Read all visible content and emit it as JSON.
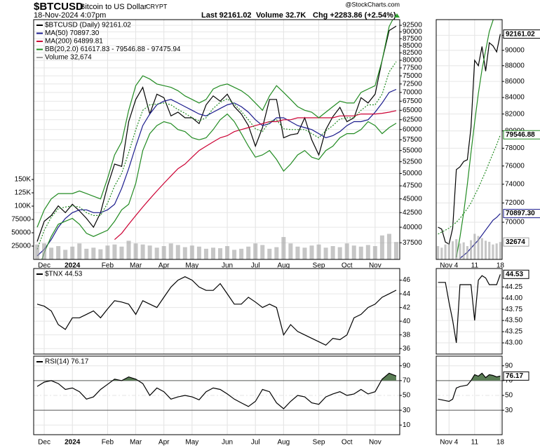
{
  "header": {
    "symbol": "$BTCUSD",
    "name": "Bitcoin to US Dollar",
    "exchange": "CRYPT",
    "datetime": "18-Nov-2024 4:07pm",
    "source": "@StockCharts.com",
    "last": "Last 92161.02",
    "volume": "Volume 32.7K",
    "change": "Chg +2283.86 (+2.54%)"
  },
  "chart_data": [
    {
      "type": "line",
      "log": true,
      "grid": true,
      "categories": [
        null,
        "Dec",
        null,
        null,
        null,
        "2024",
        null,
        null,
        null,
        null,
        "Feb",
        null,
        null,
        null,
        "Mar",
        null,
        null,
        null,
        "Apr",
        null,
        null,
        null,
        "May",
        null,
        null,
        null,
        null,
        "Jun",
        null,
        null,
        null,
        "Jul",
        null,
        null,
        null,
        "Aug",
        null,
        null,
        null,
        null,
        "Sep",
        null,
        null,
        null,
        "Oct",
        null,
        null,
        null,
        "Nov",
        null,
        null,
        null
      ],
      "ylim": [
        35000,
        94700
      ],
      "yticks": [
        37500,
        40000,
        42500,
        45000,
        47500,
        50000,
        52500,
        55000,
        57500,
        60000,
        62500,
        65000,
        67500,
        70000,
        72500,
        75000,
        77500,
        80000,
        82500,
        85000,
        87500,
        90000,
        92500
      ],
      "y2lim": [
        0,
        450000
      ],
      "y2ticks": [
        25000,
        50000,
        75000,
        {
          "value": 100000,
          "label": "100K"
        },
        {
          "value": 125000,
          "label": "125K"
        },
        {
          "value": 150000,
          "label": "150K"
        }
      ],
      "series": [
        {
          "name": "$BTCUSD (Daily) 92161.02",
          "color": "#000000",
          "values": [
            37700,
            41000,
            42000,
            43700,
            42500,
            44000,
            42800,
            41500,
            40000,
            42500,
            47500,
            52000,
            51500,
            62000,
            68000,
            71500,
            64000,
            69500,
            68500,
            63500,
            64500,
            63000,
            63000,
            61500,
            66500,
            69000,
            67500,
            69500,
            66000,
            64000,
            61000,
            56000,
            60500,
            68000,
            68000,
            58000,
            58700,
            59000,
            63000,
            57500,
            54000,
            60000,
            63300,
            65800,
            62000,
            63000,
            68500,
            67000,
            69500,
            80000,
            90500,
            92161.02
          ]
        },
        {
          "name": "MA(50) 70897.30",
          "color": "#1a1a8c",
          "values": [
            35500,
            36500,
            38000,
            40000,
            41500,
            42500,
            43000,
            43000,
            42500,
            42500,
            43000,
            44000,
            47000,
            51000,
            56000,
            61000,
            64000,
            66500,
            67500,
            68000,
            67000,
            66000,
            65000,
            64000,
            63500,
            64500,
            65500,
            66500,
            67000,
            66000,
            64500,
            62500,
            61000,
            61500,
            63000,
            63000,
            62000,
            61000,
            60500,
            60000,
            59000,
            58000,
            58500,
            59500,
            61000,
            62000,
            62000,
            62500,
            64500,
            67000,
            70000,
            70897.3
          ]
        },
        {
          "name": "MA(200) 64899.81",
          "color": "#cc0033",
          "values": [
            null,
            null,
            null,
            null,
            null,
            null,
            null,
            null,
            null,
            null,
            null,
            38000,
            39000,
            40500,
            42000,
            43500,
            45000,
            46500,
            48000,
            49500,
            51000,
            52000,
            53500,
            55000,
            56000,
            57000,
            58000,
            58500,
            59500,
            60000,
            60500,
            61000,
            61500,
            62000,
            62000,
            62500,
            62500,
            63000,
            63000,
            63000,
            63000,
            63000,
            63000,
            63500,
            63500,
            63500,
            64000,
            64000,
            64000,
            64200,
            64500,
            64899.81
          ]
        },
        {
          "name": "BB(20,2.0) 61617.83 - 79546.88 - 97475.94",
          "color": "#228b22",
          "style": "dotted",
          "values": [
            36500,
            39500,
            41700,
            43200,
            43500,
            43700,
            43500,
            42500,
            42000,
            42000,
            44200,
            47500,
            50000,
            54500,
            60000,
            65000,
            66500,
            66700,
            67000,
            66500,
            65200,
            64200,
            63000,
            62200,
            63000,
            65500,
            67200,
            68200,
            66700,
            64700,
            62500,
            60200,
            59500,
            62000,
            62500,
            60200,
            60000,
            60000,
            60000,
            59000,
            58000,
            59700,
            61000,
            62700,
            63000,
            63000,
            65000,
            66500,
            66500,
            69500,
            76200,
            79546.88
          ],
          "upper": [
            40000,
            43000,
            45000,
            46000,
            46000,
            46000,
            46500,
            46000,
            45500,
            45000,
            49000,
            54000,
            57000,
            65000,
            72000,
            75000,
            74000,
            72500,
            72000,
            71500,
            70500,
            69000,
            68000,
            67000,
            68000,
            71000,
            72000,
            72500,
            71500,
            70500,
            69000,
            67000,
            65000,
            69000,
            72000,
            70000,
            68000,
            66000,
            65000,
            64500,
            63000,
            64500,
            66000,
            67500,
            67000,
            67000,
            70000,
            71000,
            72000,
            80000,
            92000,
            97475.94
          ],
          "lower": [
            33000,
            36000,
            38500,
            40500,
            41000,
            41500,
            40500,
            39000,
            38500,
            39000,
            39500,
            41000,
            43000,
            44000,
            48000,
            55000,
            59000,
            61000,
            62000,
            61500,
            60000,
            59500,
            58000,
            57500,
            58000,
            60000,
            62500,
            64000,
            62000,
            59000,
            56000,
            53500,
            54000,
            55000,
            53000,
            50500,
            52000,
            54000,
            55000,
            53500,
            53000,
            55000,
            56000,
            58000,
            59000,
            59000,
            60000,
            62000,
            61000,
            59000,
            60500,
            61617.83
          ]
        },
        {
          "name": "Volume 32,674",
          "color": "#a0a0a0",
          "type": "bar",
          "axis": "y2",
          "values": [
            28000,
            30000,
            22000,
            25000,
            18000,
            24000,
            30000,
            20000,
            22000,
            19000,
            26000,
            28000,
            24000,
            35000,
            30000,
            28000,
            26000,
            22000,
            25000,
            30000,
            27000,
            23000,
            26000,
            24000,
            20000,
            22000,
            21000,
            25000,
            18000,
            20000,
            24000,
            30000,
            27000,
            20000,
            23000,
            42000,
            30000,
            24000,
            22000,
            26000,
            28000,
            22000,
            25000,
            23000,
            30000,
            26000,
            24000,
            27000,
            25000,
            45000,
            48000,
            32674
          ]
        }
      ]
    },
    {
      "type": "line",
      "grid": true,
      "ylim": [
        35.2,
        47.7
      ],
      "yticks": [
        36,
        38,
        40,
        42,
        44,
        46
      ],
      "series": [
        {
          "name": "$TNX 44.53",
          "color": "#000000",
          "values": [
            42.5,
            42.2,
            41.5,
            39.5,
            38.8,
            40.5,
            40.5,
            41.0,
            41.5,
            40.5,
            41.8,
            43.0,
            42.8,
            42.5,
            41.0,
            43.0,
            42.5,
            42.0,
            43.5,
            45.0,
            46.0,
            46.5,
            46.0,
            45.0,
            44.5,
            44.5,
            45.5,
            44.0,
            42.5,
            42.5,
            43.5,
            42.8,
            42.0,
            42.5,
            42.0,
            38.0,
            39.5,
            38.5,
            38.0,
            37.5,
            37.0,
            36.5,
            37.5,
            37.3,
            38.0,
            40.5,
            41.0,
            42.0,
            42.5,
            43.5,
            44.0,
            44.53
          ]
        }
      ]
    },
    {
      "type": "line",
      "grid": true,
      "ylim": [
        -3,
        103
      ],
      "yticks": [
        10,
        30,
        50,
        70,
        90
      ],
      "overbought": 70,
      "fill_color": "#5a7d55",
      "series": [
        {
          "name": "RSI(14) 76.17",
          "color": "#000000",
          "values": [
            62,
            68,
            70,
            66,
            58,
            60,
            55,
            45,
            48,
            58,
            65,
            72,
            70,
            75,
            72,
            66,
            50,
            60,
            55,
            45,
            48,
            50,
            48,
            44,
            55,
            60,
            58,
            52,
            45,
            40,
            35,
            42,
            58,
            55,
            40,
            32,
            42,
            50,
            48,
            40,
            38,
            48,
            52,
            55,
            50,
            52,
            58,
            52,
            55,
            72,
            80,
            76.17
          ]
        }
      ]
    },
    {
      "type": "line",
      "log": true,
      "grid": true,
      "categories": [
        null,
        null,
        null,
        "Nov 4",
        null,
        null,
        null,
        null,
        null,
        null,
        "11",
        null,
        null,
        null,
        null,
        null,
        null,
        "18"
      ],
      "ylim": [
        66300,
        94130
      ],
      "yticks": [
        70000,
        72000,
        74000,
        76000,
        78000,
        80000,
        82000,
        84000,
        86000,
        88000,
        90000,
        92000
      ],
      "y2lim": [
        0,
        450000
      ],
      "series": [
        {
          "color": "#000000",
          "last_label": "92161.02",
          "values": [
            69500,
            69300,
            68000,
            67800,
            69400,
            75600,
            75900,
            76500,
            76700,
            80400,
            88700,
            88000,
            90500,
            87300,
            91000,
            90600,
            89800,
            92161.02
          ]
        },
        {
          "color": "#1a1a8c",
          "last_label": "70897.30",
          "values": [
            null,
            null,
            null,
            null,
            null,
            null,
            66400,
            66700,
            67000,
            67400,
            67800,
            68200,
            68700,
            69200,
            69700,
            70200,
            70500,
            70897.3
          ]
        },
        {
          "color": "#228b22",
          "style": "dotted",
          "last_label": "79546.88",
          "values": [
            68800,
            69000,
            69200,
            69400,
            69700,
            70000,
            70400,
            70900,
            71400,
            72000,
            72800,
            73600,
            74500,
            75400,
            76400,
            77400,
            78400,
            79546.88
          ],
          "upper": [
            null,
            null,
            null,
            null,
            null,
            66500,
            68500,
            71000,
            74000,
            77500,
            81000,
            84500,
            87500,
            90000,
            92500,
            94000,
            96000,
            97475.94
          ]
        },
        {
          "color": "#a0a0a0",
          "type": "bar",
          "axis": "y2",
          "last_label": "32674",
          "values": [
            25000,
            22000,
            28000,
            30000,
            34000,
            38000,
            30000,
            32000,
            25000,
            36000,
            48000,
            44000,
            40000,
            35000,
            33000,
            28000,
            30000,
            32674
          ]
        }
      ]
    },
    {
      "type": "line",
      "grid": true,
      "ylim": [
        42.75,
        44.66
      ],
      "yticks": [
        {
          "value": 43,
          "label": "43.00"
        },
        {
          "value": 43.25,
          "label": "43.25"
        },
        {
          "value": 43.5,
          "label": "43.50"
        },
        {
          "value": 43.75,
          "label": "43.75"
        },
        {
          "value": 44,
          "label": "44.00"
        },
        {
          "value": 44.25,
          "label": "44.25"
        }
      ],
      "series": [
        {
          "color": "#000000",
          "last_label": "44.53",
          "values": [
            44.35,
            44.35,
            44.35,
            43.9,
            43.5,
            43.0,
            44.3,
            44.3,
            44.3,
            44.3,
            43.5,
            44.4,
            44.5,
            44.45,
            44.3,
            44.3,
            44.3,
            44.53
          ]
        }
      ]
    },
    {
      "type": "line",
      "grid": true,
      "ylim": [
        -3,
        103
      ],
      "yticks": [
        30,
        50,
        70,
        90
      ],
      "overbought": 70,
      "fill_color": "#5a7d55",
      "series": [
        {
          "color": "#000000",
          "last_label": "76.17",
          "values": [
            45,
            44,
            43,
            42,
            45,
            60,
            62,
            63,
            64,
            70,
            78,
            76,
            80,
            74,
            78,
            77,
            75,
            76.17
          ]
        }
      ]
    }
  ]
}
